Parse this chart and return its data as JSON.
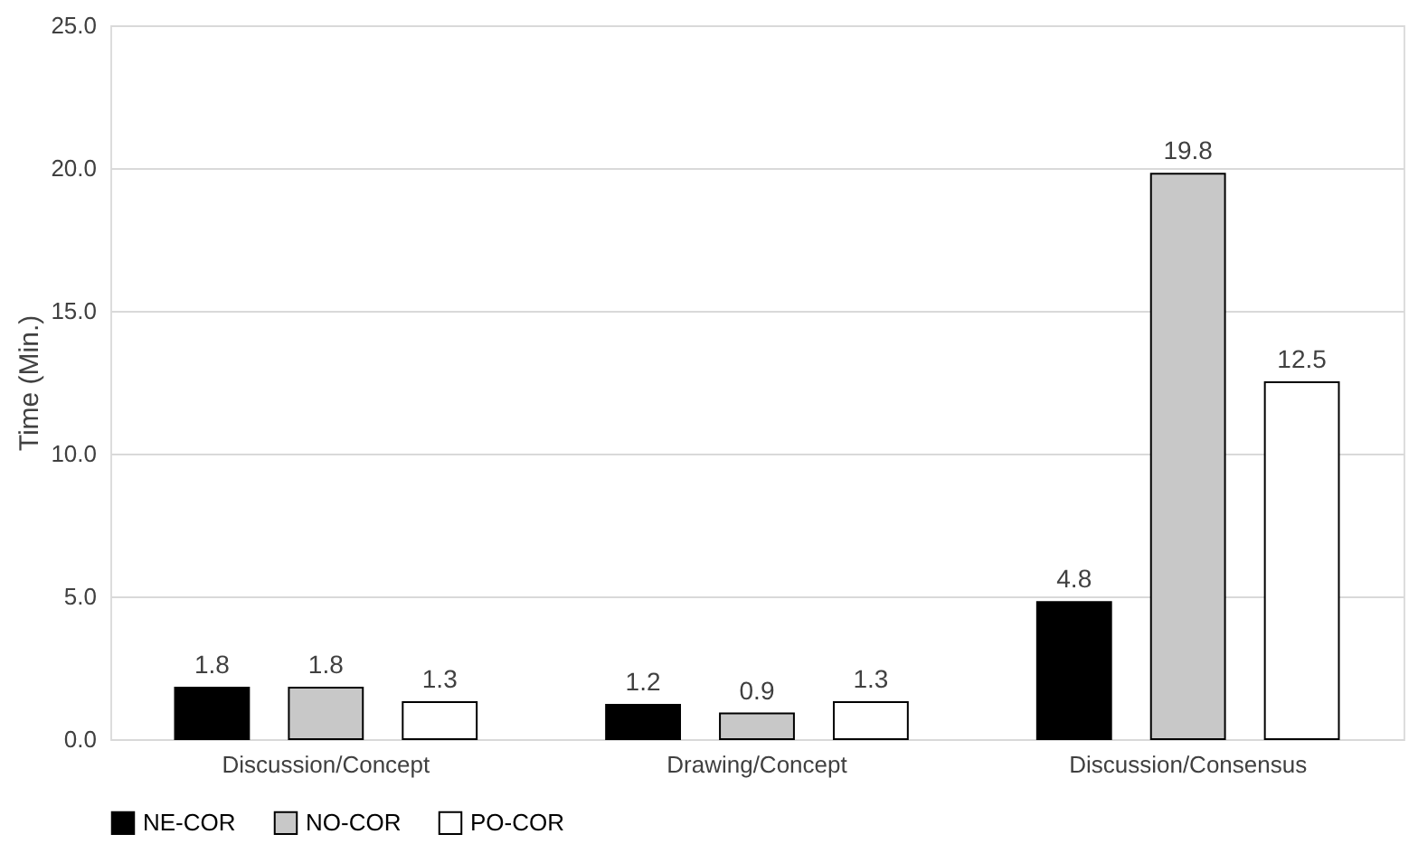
{
  "chart_data": {
    "type": "bar",
    "categories": [
      "Discussion/Concept",
      "Drawing/Concept",
      "Discussion/Consensus"
    ],
    "series": [
      {
        "name": "NE-COR",
        "color": "#000000",
        "values": [
          1.8,
          1.2,
          4.8
        ]
      },
      {
        "name": "NO-COR",
        "color": "#c8c8c8",
        "values": [
          1.8,
          0.9,
          19.8
        ]
      },
      {
        "name": "PO-COR",
        "color": "#ffffff",
        "values": [
          1.3,
          1.3,
          12.5
        ]
      }
    ],
    "ylabel": "Time (Min.)",
    "ylim": [
      0,
      25
    ],
    "yticks": [
      {
        "value": 0,
        "label": "0.0"
      },
      {
        "value": 5,
        "label": "5.0"
      },
      {
        "value": 10,
        "label": "10.0"
      },
      {
        "value": 15,
        "label": "15.0"
      },
      {
        "value": 20,
        "label": "20.0"
      },
      {
        "value": 25,
        "label": "25.0"
      }
    ],
    "grid": "y",
    "legend": "bottom",
    "data_labels": true
  }
}
